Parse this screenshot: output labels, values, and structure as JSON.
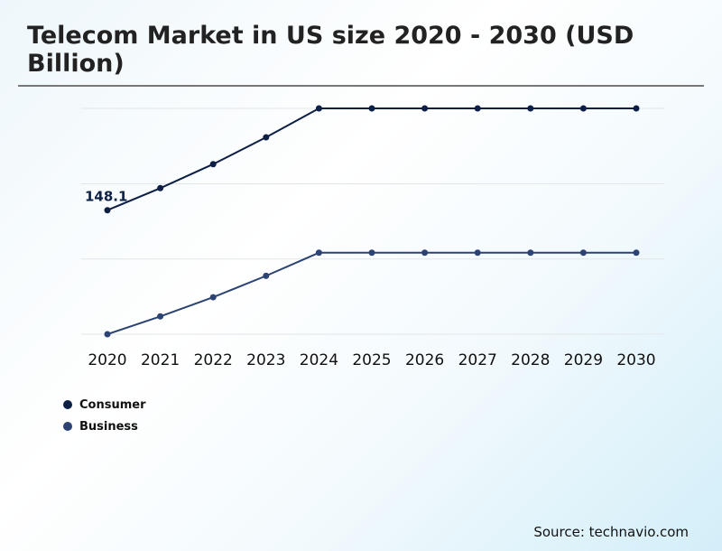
{
  "chart_data": {
    "type": "line",
    "title": "Telecom Market in US size 2020 - 2030 (USD Billion)",
    "categories": [
      "2020",
      "2021",
      "2022",
      "2023",
      "2024",
      "2025",
      "2026",
      "2027",
      "2028",
      "2029",
      "2030"
    ],
    "series": [
      {
        "name": "Consumer",
        "color": "#0d1f45",
        "values": [
          148.1,
          170.9,
          195.7,
          223.4,
          253.3,
          253.3,
          253.3,
          253.3,
          253.3,
          253.3,
          253.3
        ]
      },
      {
        "name": "Business",
        "color": "#2c4373",
        "values": [
          20.0,
          38.4,
          58.2,
          80.3,
          104.2,
          104.2,
          104.2,
          104.2,
          104.2,
          104.2,
          104.2
        ]
      }
    ],
    "data_labels": [
      {
        "series": "Consumer",
        "category": "2020",
        "text": "148.1"
      }
    ],
    "ylim": [
      20,
      253.3
    ],
    "gridlines": [
      20,
      97.7,
      175.4,
      253.3
    ],
    "grid": true,
    "legend_position": "bottom-left"
  },
  "source": "Source: technavio.com"
}
